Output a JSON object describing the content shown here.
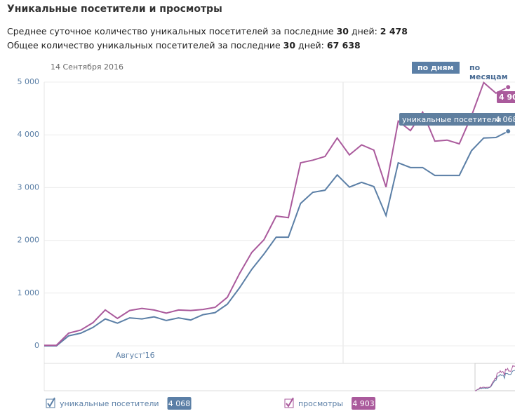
{
  "header": {
    "title": "Уникальные посетители и просмотры",
    "line1": {
      "text": "Среднее суточное количество уникальных посетителей за последние ",
      "days": "30",
      "middle": " дней: ",
      "value": "2 478"
    },
    "line2": {
      "text": "Общее количество уникальных посетителей за последние ",
      "days": "30",
      "middle": " дней: ",
      "value": "67 638"
    }
  },
  "date": "14 Сентября 2016",
  "buttons": [
    "по дням",
    "по месяцам"
  ],
  "chart_data": {
    "type": "line",
    "categories": [
      null,
      null,
      null,
      null,
      null,
      null,
      null,
      "Август'16",
      null,
      null,
      null,
      null,
      null,
      null,
      null,
      null,
      null,
      null,
      null,
      null,
      null,
      null,
      null,
      null,
      null,
      null,
      null,
      null,
      null,
      null,
      null,
      null,
      null,
      null,
      null,
      null,
      null,
      null,
      null
    ],
    "series": [
      {
        "name": "уникальные посетители",
        "color": "#5b7fa6",
        "values": [
          0,
          0,
          190,
          240,
          350,
          510,
          430,
          530,
          510,
          550,
          480,
          530,
          490,
          590,
          630,
          790,
          1100,
          1450,
          1740,
          2060,
          2060,
          2700,
          2910,
          2950,
          3240,
          3010,
          3100,
          3020,
          2470,
          3470,
          3380,
          3380,
          3230,
          3230,
          3230,
          3700,
          3940,
          3950,
          4068
        ],
        "value_labels": [
          null,
          null,
          null,
          null,
          null,
          null,
          null,
          null,
          null,
          null,
          null,
          null,
          null,
          null,
          null,
          null,
          null,
          null,
          null,
          null,
          null,
          null,
          null,
          null,
          null,
          null,
          null,
          null,
          null,
          null,
          null,
          null,
          null,
          null,
          null,
          null,
          null,
          null,
          "4 068"
        ]
      },
      {
        "name": "просмотры",
        "color": "#aa5a9c",
        "values": [
          10,
          10,
          240,
          300,
          440,
          680,
          520,
          670,
          710,
          680,
          620,
          680,
          670,
          690,
          730,
          920,
          1370,
          1770,
          2010,
          2460,
          2430,
          3470,
          3520,
          3590,
          3940,
          3620,
          3810,
          3710,
          3010,
          4260,
          4080,
          4430,
          3880,
          3900,
          3830,
          4360,
          4990,
          4790,
          4903
        ],
        "value_labels": [
          null,
          null,
          null,
          null,
          null,
          null,
          null,
          null,
          null,
          null,
          null,
          null,
          null,
          null,
          null,
          null,
          null,
          null,
          null,
          null,
          null,
          null,
          null,
          null,
          null,
          null,
          null,
          null,
          null,
          null,
          null,
          null,
          null,
          null,
          null,
          null,
          null,
          null,
          "4 903"
        ]
      }
    ],
    "ylim": [
      0,
      5000
    ],
    "yticks": [
      {
        "value": 0,
        "label": "0"
      },
      {
        "value": 1000,
        "label": "1 000"
      },
      {
        "value": 2000,
        "label": "2 000"
      },
      {
        "value": 3000,
        "label": "3 000"
      },
      {
        "value": 4000,
        "label": "4 000"
      },
      {
        "value": 5000,
        "label": "5 000"
      }
    ],
    "grid": true
  }
}
